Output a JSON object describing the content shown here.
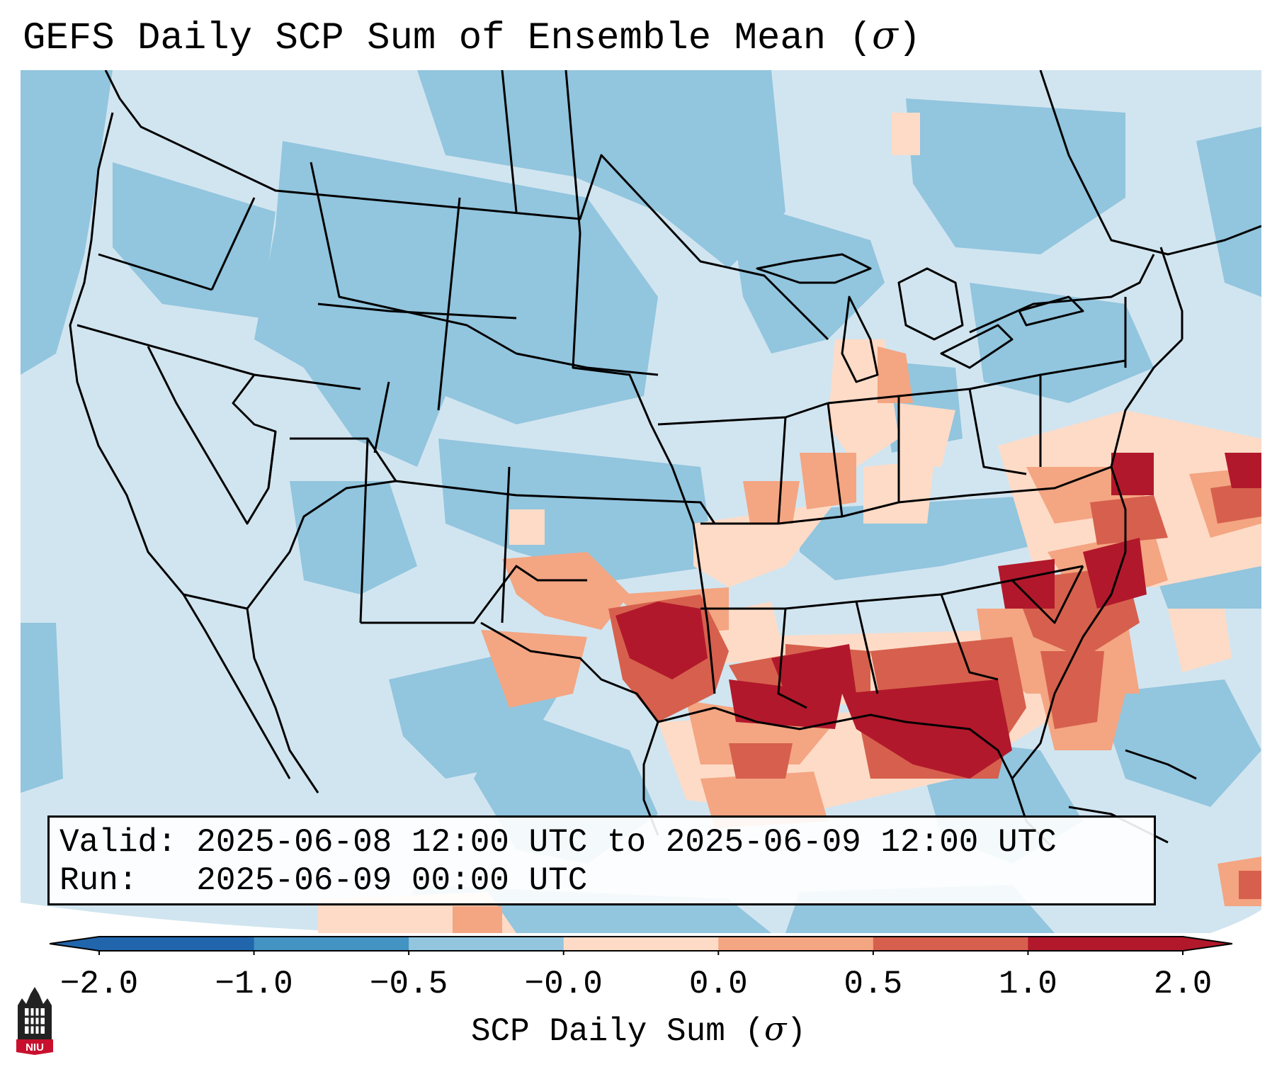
{
  "title": {
    "text": "GEFS Daily SCP Sum of Ensemble Mean (",
    "symbol": "σ",
    "close": ")"
  },
  "info": {
    "valid_line": "Valid: 2025-06-08 12:00 UTC to 2025-06-09 12:00 UTC",
    "run_line": "Run:   2025-06-09 00:00 UTC"
  },
  "colorbar": {
    "label_text": "SCP Daily Sum (",
    "label_symbol": "σ",
    "label_close": ")",
    "ticks": [
      "−2.0",
      "−1.0",
      "−0.5",
      "−0.0",
      "0.0",
      "0.5",
      "1.0",
      "2.0"
    ],
    "colors": [
      "#2166ac",
      "#4393c3",
      "#92c5de",
      "#d1e5f0",
      "#fddbc7",
      "#f4a582",
      "#d6604d",
      "#b2182b"
    ],
    "extend": "both"
  },
  "logo": {
    "text": "NIU"
  },
  "colors": {
    "frame": "#000000",
    "background_blue": "#d1e5f0"
  }
}
